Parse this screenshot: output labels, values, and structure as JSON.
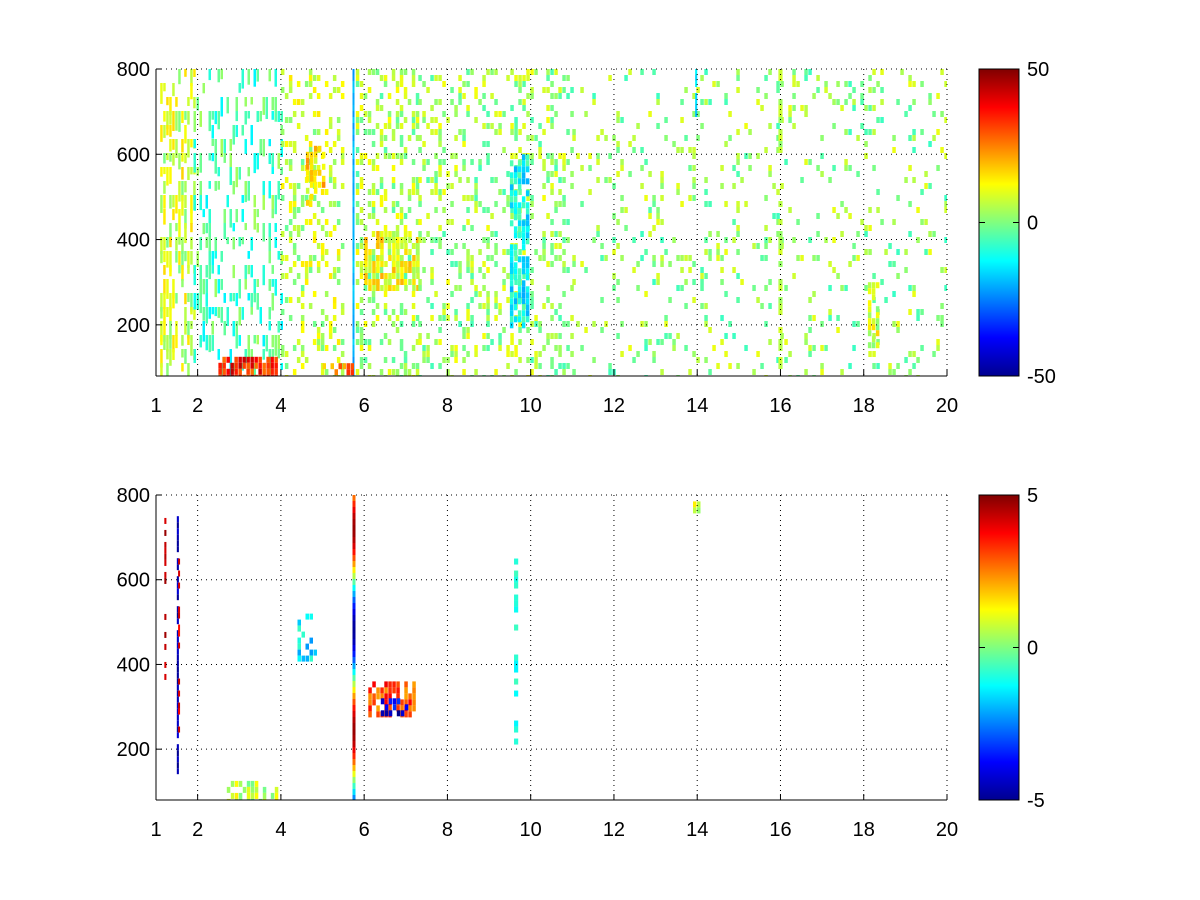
{
  "chart_data": [
    {
      "type": "heatmap",
      "title": "",
      "xlabel": "",
      "ylabel": "",
      "xlim": [
        1,
        20
      ],
      "ylim": [
        80,
        800
      ],
      "xticks": [
        1,
        2,
        4,
        6,
        8,
        10,
        12,
        14,
        16,
        18,
        20
      ],
      "yticks": [
        200,
        400,
        600,
        800
      ],
      "grid": true,
      "colorbar": {
        "colormap": "jet",
        "range": [
          -50,
          50
        ],
        "ticks": [
          50,
          0,
          -50
        ]
      },
      "features": [
        {
          "x": [
            1.1,
            1.9
          ],
          "y": [
            80,
            800
          ],
          "value": 8,
          "density": 0.55,
          "kind": "vertical-streaks"
        },
        {
          "x": [
            1.9,
            4.0
          ],
          "y": [
            80,
            800
          ],
          "value": -5,
          "density": 0.35,
          "kind": "vertical-streaks"
        },
        {
          "x": [
            2.5,
            3.9
          ],
          "y": [
            80,
            125
          ],
          "value": 35,
          "density": 0.9,
          "kind": "patch"
        },
        {
          "x": [
            4.0,
            5.5
          ],
          "y": [
            80,
            800
          ],
          "value": 6,
          "density": 0.28,
          "kind": "scatter"
        },
        {
          "x": [
            4.6,
            5.0
          ],
          "y": [
            480,
            620
          ],
          "value": 15,
          "density": 0.5,
          "kind": "patch"
        },
        {
          "x": [
            5.72,
            5.74
          ],
          "y": [
            80,
            800
          ],
          "value": -20,
          "density": 1.0,
          "kind": "line"
        },
        {
          "x": [
            5.0,
            5.7
          ],
          "y": [
            90,
            110
          ],
          "value": 25,
          "density": 0.7,
          "kind": "patch"
        },
        {
          "x": [
            5.8,
            7.3
          ],
          "y": [
            80,
            800
          ],
          "value": 4,
          "density": 0.3,
          "kind": "scatter"
        },
        {
          "x": [
            6.0,
            7.3
          ],
          "y": [
            280,
            420
          ],
          "value": 12,
          "density": 0.65,
          "kind": "patch"
        },
        {
          "x": [
            7.3,
            11.0
          ],
          "y": [
            80,
            800
          ],
          "value": 3,
          "density": 0.25,
          "kind": "scatter"
        },
        {
          "x": [
            9.5,
            9.9
          ],
          "y": [
            200,
            600
          ],
          "value": -12,
          "density": 0.7,
          "kind": "patch"
        },
        {
          "x": [
            11.0,
            20.0
          ],
          "y": [
            80,
            800
          ],
          "value": 2,
          "density": 0.12,
          "kind": "scatter"
        },
        {
          "x": [
            13.95,
            14.0
          ],
          "y": [
            700,
            800
          ],
          "value": -15,
          "density": 0.8,
          "kind": "line"
        },
        {
          "x": [
            15.95,
            16.05
          ],
          "y": [
            80,
            800
          ],
          "value": 5,
          "density": 0.5,
          "kind": "line"
        },
        {
          "x": [
            18.1,
            18.3
          ],
          "y": [
            150,
            300
          ],
          "value": 8,
          "density": 0.6,
          "kind": "patch"
        }
      ]
    },
    {
      "type": "heatmap",
      "title": "",
      "xlabel": "",
      "ylabel": "",
      "xlim": [
        1,
        20
      ],
      "ylim": [
        80,
        800
      ],
      "xticks": [
        1,
        2,
        4,
        6,
        8,
        10,
        12,
        14,
        16,
        18,
        20
      ],
      "yticks": [
        200,
        400,
        600,
        800
      ],
      "grid": true,
      "colorbar": {
        "colormap": "jet",
        "range": [
          -5,
          5
        ],
        "ticks": [
          5,
          0,
          -5
        ]
      },
      "features": [
        {
          "x": [
            1.2,
            1.25
          ],
          "y": [
            360,
            760
          ],
          "value": 4.5,
          "density": 0.55,
          "kind": "line"
        },
        {
          "x": [
            1.5,
            1.55
          ],
          "y": [
            150,
            750
          ],
          "value": -4.5,
          "density": 0.9,
          "kind": "line"
        },
        {
          "x": [
            1.53,
            1.56
          ],
          "y": [
            150,
            650
          ],
          "value": 4.0,
          "density": 0.35,
          "kind": "line"
        },
        {
          "x": [
            2.7,
            3.9
          ],
          "y": [
            80,
            125
          ],
          "value": 0.5,
          "density": 0.55,
          "kind": "patch"
        },
        {
          "x": [
            4.4,
            4.8
          ],
          "y": [
            420,
            520
          ],
          "value": -1.5,
          "density": 0.4,
          "kind": "scatter"
        },
        {
          "x": [
            5.72,
            5.74
          ],
          "y": [
            80,
            800
          ],
          "value": 0,
          "density": 1.0,
          "kind": "colored-line"
        },
        {
          "x": [
            6.1,
            7.2
          ],
          "y": [
            280,
            360
          ],
          "value": 3,
          "density": 0.6,
          "kind": "patch"
        },
        {
          "x": [
            6.4,
            7.0
          ],
          "y": [
            290,
            320
          ],
          "value": -4,
          "density": 0.6,
          "kind": "patch"
        },
        {
          "x": [
            9.6,
            9.7
          ],
          "y": [
            220,
            650
          ],
          "value": -1,
          "density": 0.45,
          "kind": "line"
        },
        {
          "x": [
            13.9,
            14.0
          ],
          "y": [
            770,
            785
          ],
          "value": 0.5,
          "density": 0.8,
          "kind": "patch"
        }
      ]
    }
  ]
}
